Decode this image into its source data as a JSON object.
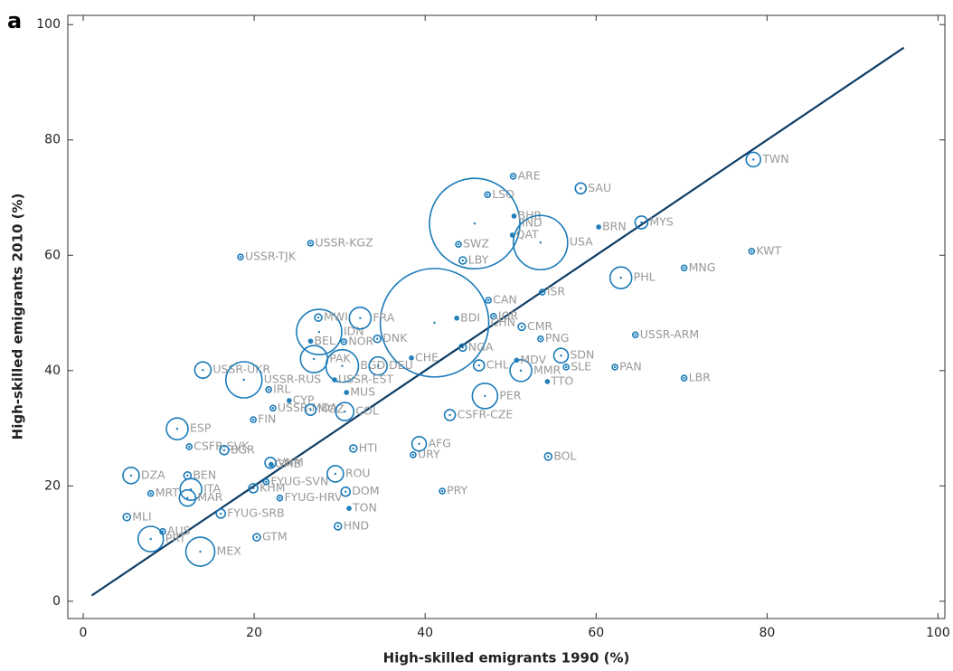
{
  "chart_data": {
    "type": "scatter",
    "panel_label": "a",
    "x_label": "High-skilled emigrants 1990 (%)",
    "y_label": "High-skilled emigrants 2010 (%)",
    "xlim": [
      -1.8,
      100.8
    ],
    "ylim": [
      -3,
      101.6
    ],
    "xticks": [
      0,
      20,
      40,
      60,
      80,
      100
    ],
    "yticks": [
      0,
      20,
      40,
      60,
      80,
      100
    ],
    "color": "#1a7ab8",
    "label_color": "#999999",
    "reference_line": {
      "x": [
        1,
        96
      ],
      "y": [
        1,
        96
      ],
      "color": "#0d3d66"
    },
    "points": [
      {
        "label": "TWN",
        "x": 78.4,
        "y": 76.6,
        "size": 8
      },
      {
        "label": "KWT",
        "x": 78.2,
        "y": 60.7,
        "size": 3
      },
      {
        "label": "MNG",
        "x": 70.3,
        "y": 57.8,
        "size": 3
      },
      {
        "label": "LBR",
        "x": 70.3,
        "y": 38.7,
        "size": 3
      },
      {
        "label": "USSR-ARM",
        "x": 64.6,
        "y": 46.2,
        "size": 3
      },
      {
        "label": "PAN",
        "x": 62.2,
        "y": 40.6,
        "size": 3
      },
      {
        "label": "BOL",
        "x": 54.4,
        "y": 25.1,
        "size": 4
      },
      {
        "label": "MYS",
        "x": 65.3,
        "y": 65.7,
        "size": 7
      },
      {
        "label": "BRN",
        "x": 60.3,
        "y": 64.9,
        "size": 2
      },
      {
        "label": "PHL",
        "x": 62.9,
        "y": 56.1,
        "size": 12
      },
      {
        "label": "SAU",
        "x": 58.2,
        "y": 71.6,
        "size": 6
      },
      {
        "label": "ARE",
        "x": 50.3,
        "y": 73.7,
        "size": 3
      },
      {
        "label": "LSO",
        "x": 47.3,
        "y": 70.5,
        "size": 3
      },
      {
        "label": "IND",
        "x": 45.8,
        "y": 65.5,
        "size": 50
      },
      {
        "label": "BHR",
        "x": 50.4,
        "y": 66.8,
        "size": 2
      },
      {
        "label": "QAT",
        "x": 50.2,
        "y": 63.5,
        "size": 2
      },
      {
        "label": "USA",
        "x": 53.5,
        "y": 62.2,
        "size": 30
      },
      {
        "label": "SWZ",
        "x": 43.9,
        "y": 61.9,
        "size": 3
      },
      {
        "label": "LBY",
        "x": 44.4,
        "y": 59.1,
        "size": 4
      },
      {
        "label": "USSR-KGZ",
        "x": 26.6,
        "y": 62.1,
        "size": 3
      },
      {
        "label": "USSR-TJK",
        "x": 18.4,
        "y": 59.7,
        "size": 3
      },
      {
        "label": "ISR",
        "x": 53.7,
        "y": 53.6,
        "size": 3
      },
      {
        "label": "JOR",
        "x": 48.0,
        "y": 49.4,
        "size": 3
      },
      {
        "label": "CMR",
        "x": 51.3,
        "y": 47.6,
        "size": 4
      },
      {
        "label": "PNG",
        "x": 53.5,
        "y": 45.5,
        "size": 3
      },
      {
        "label": "SDN",
        "x": 55.9,
        "y": 42.6,
        "size": 8
      },
      {
        "label": "SLE",
        "x": 56.5,
        "y": 40.6,
        "size": 3
      },
      {
        "label": "TTO",
        "x": 54.3,
        "y": 38.1,
        "size": 2
      },
      {
        "label": "MMR",
        "x": 51.2,
        "y": 40.0,
        "size": 12
      },
      {
        "label": "MDV",
        "x": 50.7,
        "y": 41.8,
        "size": 2
      },
      {
        "label": "CHL",
        "x": 46.3,
        "y": 40.9,
        "size": 6
      },
      {
        "label": "CAN",
        "x": 47.4,
        "y": 52.2,
        "size": 3
      },
      {
        "label": "CHN",
        "x": 41.1,
        "y": 48.3,
        "size": 60
      },
      {
        "label": "BDI",
        "x": 43.7,
        "y": 49.1,
        "size": 2
      },
      {
        "label": "NGA",
        "x": 44.4,
        "y": 44.0,
        "size": 4
      },
      {
        "label": "HTI",
        "x": 31.6,
        "y": 26.5,
        "size": 4
      },
      {
        "label": "URY",
        "x": 38.6,
        "y": 25.4,
        "size": 3
      },
      {
        "label": "AFG",
        "x": 39.3,
        "y": 27.3,
        "size": 8
      },
      {
        "label": "PRY",
        "x": 42.0,
        "y": 19.1,
        "size": 3
      },
      {
        "label": "IDN",
        "x": 27.6,
        "y": 46.7,
        "size": 25
      },
      {
        "label": "PAK",
        "x": 27.0,
        "y": 42.0,
        "size": 15
      },
      {
        "label": "MWI",
        "x": 27.5,
        "y": 49.2,
        "size": 4
      },
      {
        "label": "FRA",
        "x": 32.4,
        "y": 49.1,
        "size": 12
      },
      {
        "label": "NOR",
        "x": 30.5,
        "y": 45.0,
        "size": 3
      },
      {
        "label": "DNK",
        "x": 34.4,
        "y": 45.5,
        "size": 4
      },
      {
        "label": "CHE",
        "x": 38.4,
        "y": 42.2,
        "size": 2
      },
      {
        "label": "BEL",
        "x": 26.6,
        "y": 45.1,
        "size": 2
      },
      {
        "label": "BGD",
        "x": 30.3,
        "y": 40.8,
        "size": 18
      },
      {
        "label": "DEU",
        "x": 34.5,
        "y": 40.8,
        "size": 10
      },
      {
        "label": "USSR-EST",
        "x": 29.4,
        "y": 38.4,
        "size": 2
      },
      {
        "label": "MUS",
        "x": 30.8,
        "y": 36.2,
        "size": 2
      },
      {
        "label": "USSR-UKR",
        "x": 14.0,
        "y": 40.1,
        "size": 9
      },
      {
        "label": "USSR-RUS",
        "x": 18.8,
        "y": 38.4,
        "size": 20
      },
      {
        "label": "IRL",
        "x": 21.7,
        "y": 36.7,
        "size": 3
      },
      {
        "label": "CYP",
        "x": 24.1,
        "y": 34.8,
        "size": 2
      },
      {
        "label": "USSR-MDA",
        "x": 22.2,
        "y": 33.5,
        "size": 3
      },
      {
        "label": "MOZ",
        "x": 26.6,
        "y": 33.2,
        "size": 6
      },
      {
        "label": "COL",
        "x": 30.6,
        "y": 32.9,
        "size": 10
      },
      {
        "label": "FIN",
        "x": 19.9,
        "y": 31.5,
        "size": 3
      },
      {
        "label": "ESP",
        "x": 11.0,
        "y": 29.9,
        "size": 12
      },
      {
        "label": "CSFR-SVK",
        "x": 12.4,
        "y": 26.8,
        "size": 3
      },
      {
        "label": "BGR",
        "x": 16.5,
        "y": 26.2,
        "size": 5
      },
      {
        "label": "DZA",
        "x": 5.6,
        "y": 21.8,
        "size": 9
      },
      {
        "label": "BEN",
        "x": 12.2,
        "y": 21.8,
        "size": 4
      },
      {
        "label": "ITA",
        "x": 12.6,
        "y": 19.4,
        "size": 12
      },
      {
        "label": "MRT",
        "x": 7.9,
        "y": 18.7,
        "size": 3
      },
      {
        "label": "MAR",
        "x": 12.2,
        "y": 17.9,
        "size": 9
      },
      {
        "label": "MLI",
        "x": 5.1,
        "y": 14.6,
        "size": 4
      },
      {
        "label": "AUS",
        "x": 9.3,
        "y": 12.1,
        "size": 3
      },
      {
        "label": "PRT",
        "x": 7.9,
        "y": 10.8,
        "size": 14
      },
      {
        "label": "MEX",
        "x": 13.7,
        "y": 8.6,
        "size": 16
      },
      {
        "label": "FYUG-SRB",
        "x": 16.1,
        "y": 15.2,
        "size": 5
      },
      {
        "label": "GTM",
        "x": 20.3,
        "y": 11.1,
        "size": 4
      },
      {
        "label": "KHM",
        "x": 19.9,
        "y": 19.6,
        "size": 5
      },
      {
        "label": "FYUG-SVN",
        "x": 21.4,
        "y": 20.7,
        "size": 3
      },
      {
        "label": "GMB",
        "x": 22.0,
        "y": 23.7,
        "size": 2
      },
      {
        "label": "VNM",
        "x": 21.9,
        "y": 24.0,
        "size": 6
      },
      {
        "label": "FYUG-HRV",
        "x": 23.0,
        "y": 17.9,
        "size": 3
      },
      {
        "label": "ROU",
        "x": 29.5,
        "y": 22.1,
        "size": 9
      },
      {
        "label": "DOM",
        "x": 30.7,
        "y": 19.0,
        "size": 5
      },
      {
        "label": "TON",
        "x": 31.1,
        "y": 16.1,
        "size": 2
      },
      {
        "label": "HND",
        "x": 29.8,
        "y": 13.0,
        "size": 4
      },
      {
        "label": "CSFR-CZE",
        "x": 42.9,
        "y": 32.3,
        "size": 6
      },
      {
        "label": "PER",
        "x": 47.0,
        "y": 35.6,
        "size": 14
      }
    ]
  }
}
